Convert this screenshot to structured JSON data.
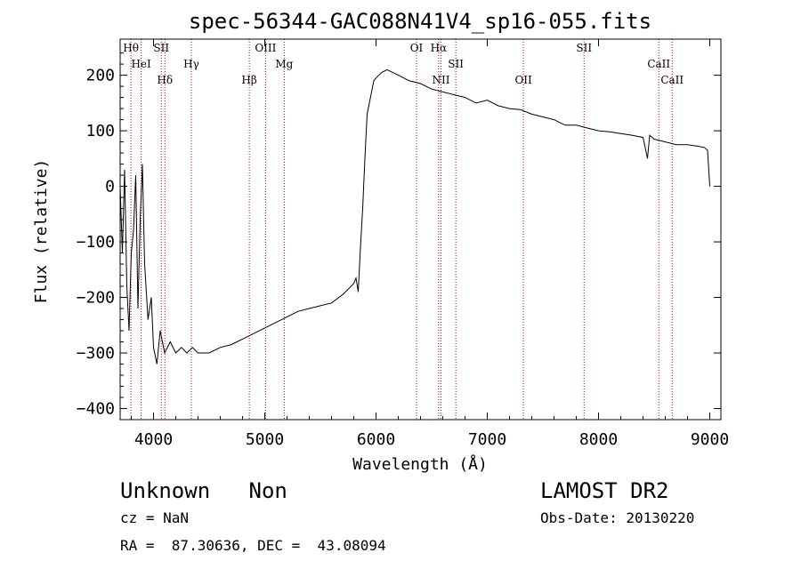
{
  "chart_data": {
    "type": "line",
    "title": "spec-56344-GAC088N41V4_sp16-055.fits",
    "xlabel": "Wavelength (Å)",
    "ylabel": "Flux (relative)",
    "xlim": [
      3700,
      9100
    ],
    "ylim": [
      -420,
      265
    ],
    "xticks": [
      4000,
      5000,
      6000,
      7000,
      8000,
      9000
    ],
    "yticks": [
      -400,
      -300,
      -200,
      -100,
      0,
      100,
      200
    ],
    "series": [
      {
        "name": "flux",
        "color": "#000000",
        "x": [
          3700,
          3720,
          3740,
          3760,
          3780,
          3800,
          3820,
          3840,
          3860,
          3880,
          3900,
          3920,
          3950,
          3980,
          4000,
          4030,
          4060,
          4100,
          4150,
          4200,
          4250,
          4300,
          4350,
          4400,
          4500,
          4600,
          4700,
          4800,
          4900,
          5000,
          5100,
          5200,
          5300,
          5400,
          5500,
          5600,
          5700,
          5750,
          5800,
          5820,
          5840,
          5860,
          5880,
          5900,
          5920,
          5940,
          5960,
          5980,
          6000,
          6050,
          6100,
          6200,
          6300,
          6400,
          6500,
          6600,
          6700,
          6800,
          6900,
          7000,
          7100,
          7200,
          7300,
          7400,
          7500,
          7600,
          7700,
          7800,
          7900,
          8000,
          8100,
          8200,
          8300,
          8400,
          8440,
          8460,
          8500,
          8600,
          8700,
          8800,
          8900,
          8950,
          8980,
          9000
        ],
        "y": [
          0,
          -120,
          30,
          -180,
          -260,
          -120,
          -80,
          20,
          -220,
          -60,
          40,
          -140,
          -240,
          -200,
          -290,
          -320,
          -260,
          -300,
          -280,
          -300,
          -290,
          -300,
          -290,
          -300,
          -300,
          -290,
          -285,
          -275,
          -265,
          -255,
          -245,
          -235,
          -225,
          -220,
          -215,
          -210,
          -195,
          -185,
          -175,
          -165,
          -190,
          -110,
          -40,
          50,
          130,
          150,
          170,
          190,
          195,
          205,
          210,
          200,
          190,
          185,
          175,
          170,
          165,
          160,
          150,
          155,
          145,
          140,
          138,
          130,
          125,
          120,
          110,
          110,
          105,
          100,
          98,
          95,
          92,
          88,
          50,
          92,
          85,
          80,
          75,
          75,
          72,
          70,
          65,
          0
        ]
      }
    ],
    "spectral_lines": [
      {
        "label": "Hθ",
        "wavelength": 3797
      },
      {
        "label": "HeI",
        "wavelength": 3889
      },
      {
        "label": "Hδ",
        "wavelength": 4102
      },
      {
        "label": "SII",
        "wavelength": 4070
      },
      {
        "label": "Hγ",
        "wavelength": 4340
      },
      {
        "label": "Hβ",
        "wavelength": 4861
      },
      {
        "label": "OIII",
        "wavelength": 5007
      },
      {
        "label": "Mg",
        "wavelength": 5175
      },
      {
        "label": "NII",
        "wavelength": 6584
      },
      {
        "label": "Hα",
        "wavelength": 6563
      },
      {
        "label": "SII",
        "wavelength": 6717
      },
      {
        "label": "OII",
        "wavelength": 7325
      },
      {
        "label": "SII",
        "wavelength": 7870
      },
      {
        "label": "CaII",
        "wavelength": 8542
      },
      {
        "label": "CaII",
        "wavelength": 8662
      },
      {
        "label": "OI",
        "wavelength": 6364
      }
    ],
    "line_color": "#c00000"
  },
  "info": {
    "class_line": "Unknown   Non",
    "cz_line": "cz = NaN",
    "coords_line": "RA =  87.30636, DEC =  43.08094",
    "survey_line": "LAMOST DR2",
    "obs_date_line": "Obs-Date: 20130220"
  }
}
